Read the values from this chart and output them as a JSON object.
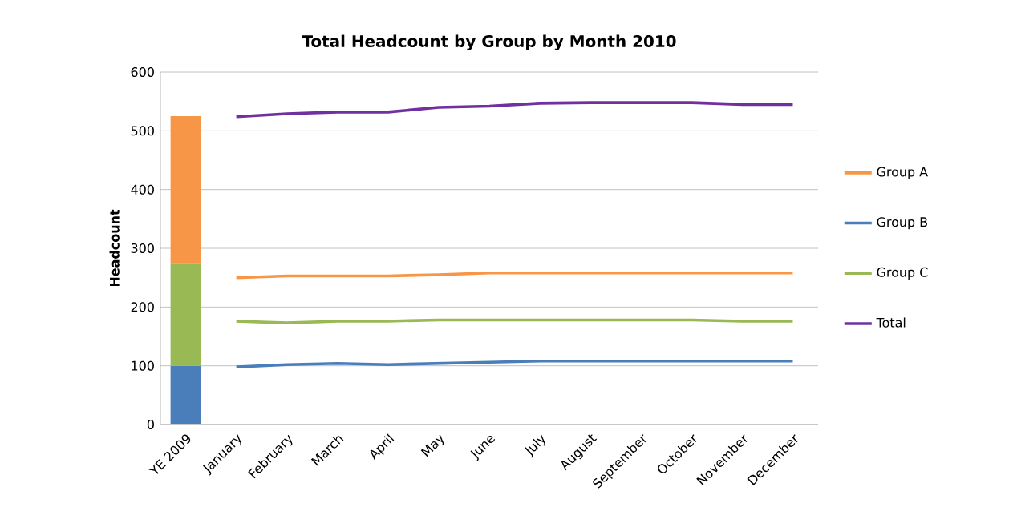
{
  "chart_data": {
    "type": "line",
    "title": "Total Headcount by Group by Month 2010",
    "ylabel": "Headcount",
    "categories": [
      "YE 2009",
      "January",
      "February",
      "March",
      "April",
      "May",
      "June",
      "July",
      "August",
      "September",
      "October",
      "November",
      "December"
    ],
    "stacked": true,
    "ylim": [
      0,
      600
    ],
    "yticks": [
      0,
      100,
      200,
      300,
      400,
      500,
      600
    ],
    "grid": "y",
    "legend": "right",
    "series": [
      {
        "type": "bar",
        "color": "#4a7ebb",
        "values": [
          100,
          null,
          null,
          null,
          null,
          null,
          null,
          null,
          null,
          null,
          null,
          null,
          null
        ]
      },
      {
        "type": "bar",
        "color": "#98b954",
        "values": [
          175,
          null,
          null,
          null,
          null,
          null,
          null,
          null,
          null,
          null,
          null,
          null,
          null
        ]
      },
      {
        "type": "bar",
        "color": "#f79646",
        "values": [
          250,
          null,
          null,
          null,
          null,
          null,
          null,
          null,
          null,
          null,
          null,
          null,
          null
        ]
      },
      {
        "name": "Group A",
        "color": "#f79646",
        "values": [
          null,
          250,
          253,
          253,
          253,
          255,
          258,
          258,
          258,
          258,
          258,
          258,
          258
        ]
      },
      {
        "name": "Group B",
        "color": "#4a7ebb",
        "values": [
          null,
          98,
          102,
          104,
          102,
          104,
          106,
          108,
          108,
          108,
          108,
          108,
          108
        ]
      },
      {
        "name": "Group C",
        "color": "#98b954",
        "values": [
          null,
          176,
          173,
          176,
          176,
          178,
          178,
          178,
          178,
          178,
          178,
          176,
          176
        ]
      },
      {
        "name": "Total",
        "color": "#7030a0",
        "values": [
          null,
          524,
          529,
          532,
          532,
          540,
          542,
          547,
          548,
          548,
          548,
          545,
          545
        ]
      }
    ]
  }
}
